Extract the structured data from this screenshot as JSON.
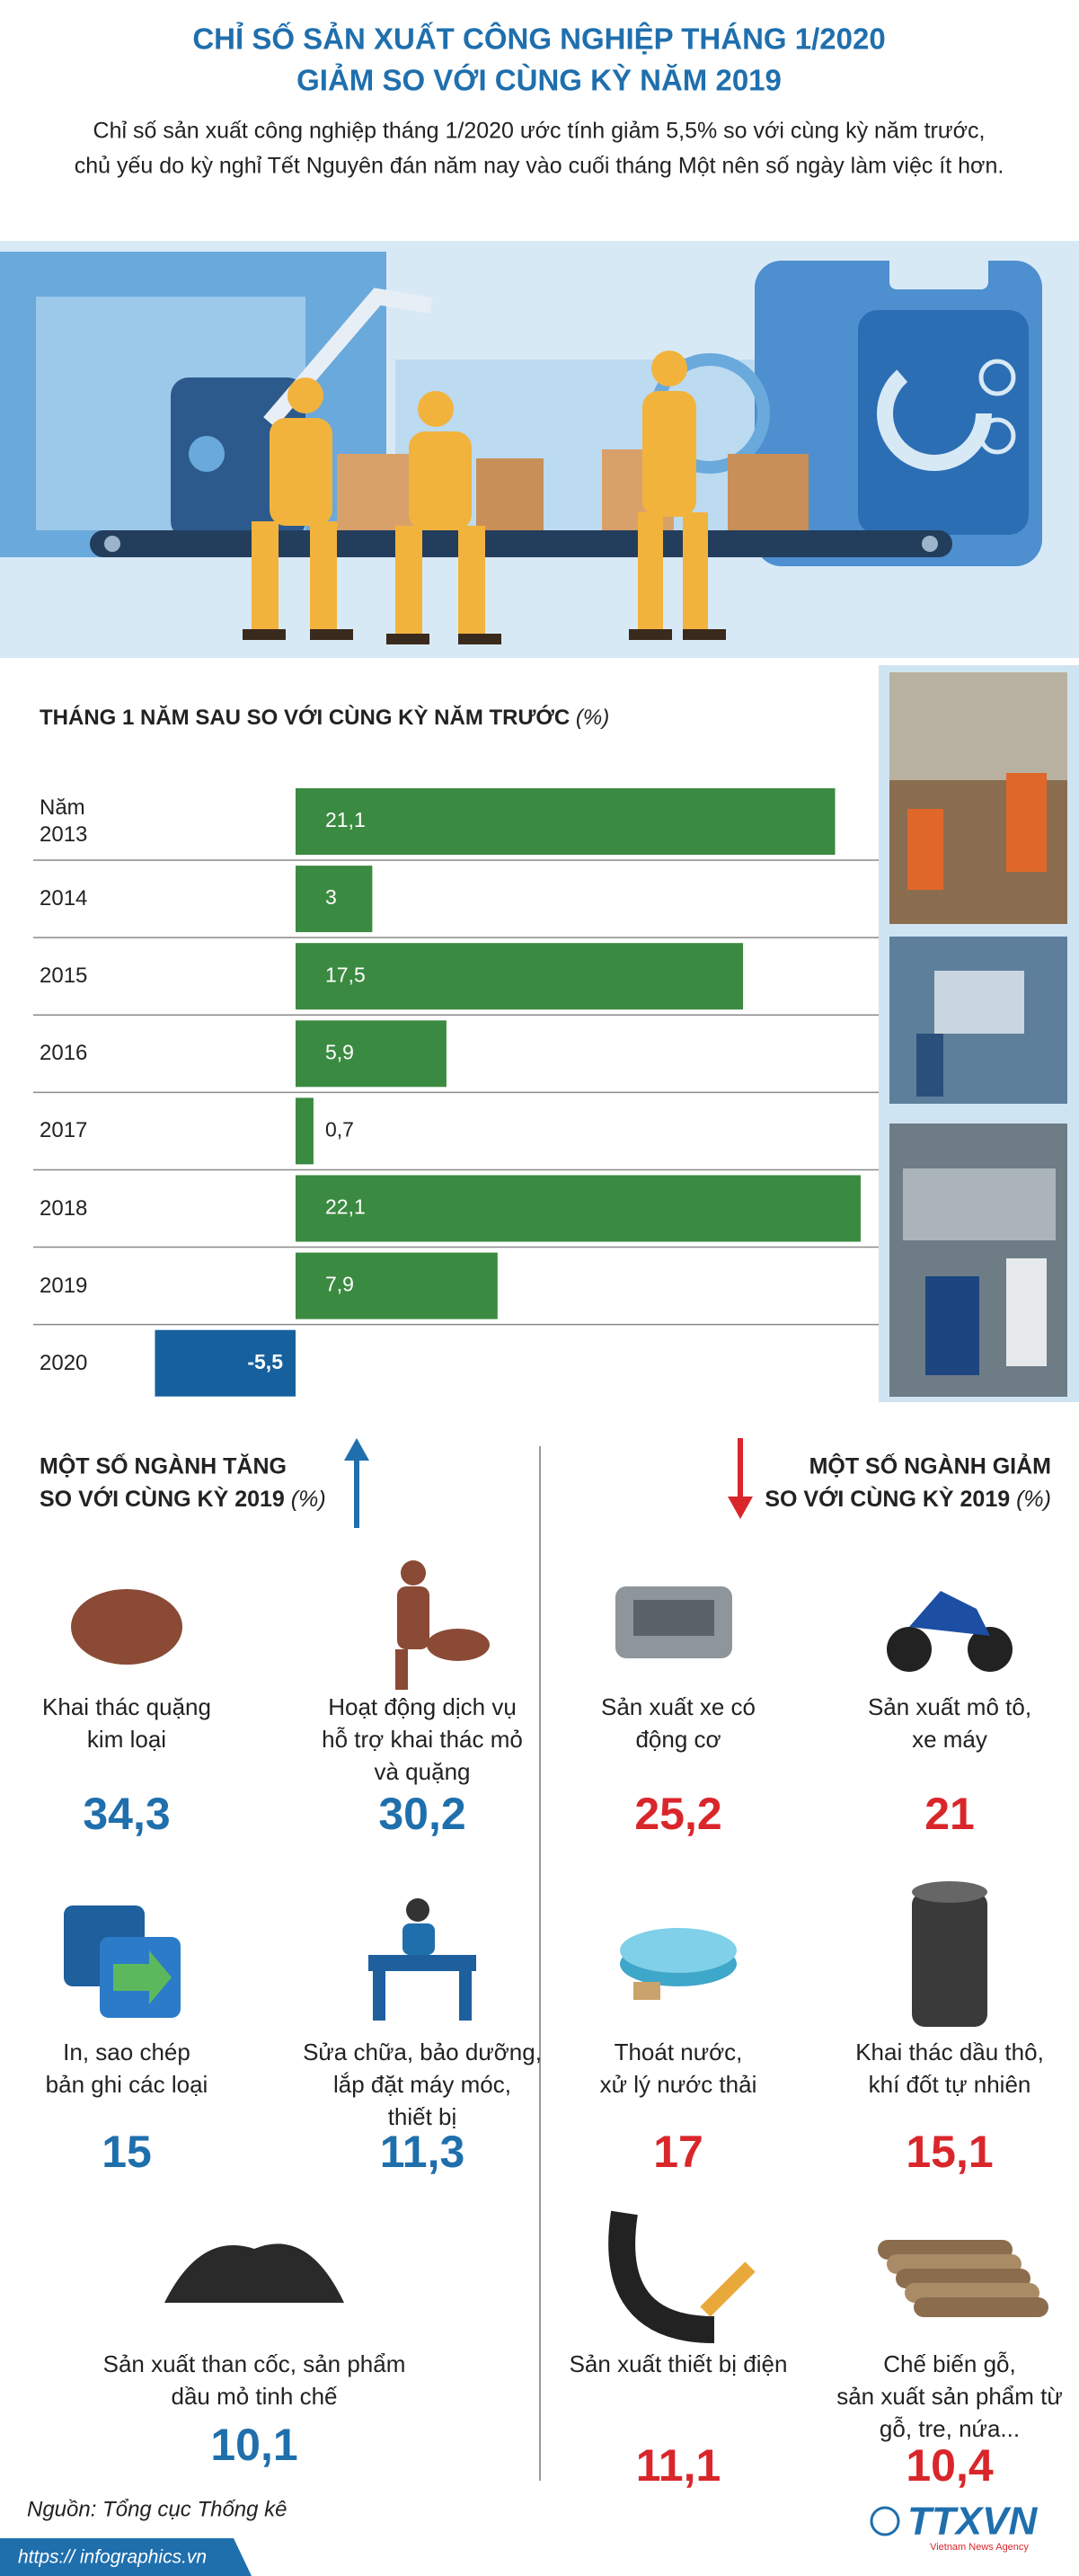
{
  "title": [
    "CHỈ SỐ SẢN XUẤT CÔNG NGHIỆP THÁNG 1/2020",
    "GIẢM SO VỚI CÙNG KỲ NĂM 2019"
  ],
  "subtitle": [
    "Chỉ số sản xuất công nghiệp tháng 1/2020 ước tính giảm 5,5% so với cùng kỳ năm trước,",
    "chủ yếu do kỳ nghỉ Tết Nguyên đán năm nay vào cuối tháng Một nên số ngày làm việc ít hơn."
  ],
  "chart_data": {
    "type": "bar",
    "title": "THÁNG 1 NĂM SAU SO VỚI CÙNG KỲ NĂM TRƯỚC",
    "unit": "(%)",
    "categories": [
      "Năm 2013",
      "2014",
      "2015",
      "2016",
      "2017",
      "2018",
      "2019",
      "2020"
    ],
    "values": [
      21.1,
      3,
      17.5,
      5.9,
      0.7,
      22.1,
      7.9,
      -5.5
    ],
    "value_labels": [
      "21,1",
      "3",
      "17,5",
      "5,9",
      "0,7",
      "22,1",
      "7,9",
      "-5,5"
    ],
    "color": "#3b8a41",
    "negative_color": "#17609e"
  },
  "increase": {
    "title": [
      "MỘT SỐ NGÀNH TĂNG",
      "SO VỚI CÙNG KỲ 2019"
    ],
    "unit": "(%)",
    "items": [
      {
        "name": [
          "Khai thác quặng",
          "kim loại"
        ],
        "value": "34,3"
      },
      {
        "name": [
          "Hoạt động dịch vụ",
          "hỗ trợ khai thác mỏ",
          "và quặng"
        ],
        "value": "30,2"
      },
      {
        "name": [
          "In, sao chép",
          "bản ghi các loại"
        ],
        "value": "15"
      },
      {
        "name": [
          "Sửa chữa, bảo dưỡng,",
          "lắp đặt máy móc,",
          "thiết bị"
        ],
        "value": "11,3"
      },
      {
        "name": [
          "Sản xuất than cốc, sản phẩm",
          "dầu mỏ tinh chế"
        ],
        "value": "10,1"
      }
    ]
  },
  "decrease": {
    "title": [
      "MỘT SỐ NGÀNH GIẢM",
      "SO VỚI CÙNG KỲ 2019"
    ],
    "unit": "(%)",
    "items": [
      {
        "name": [
          "Sản xuất xe có",
          "động cơ"
        ],
        "value": "25,2"
      },
      {
        "name": [
          "Sản xuất mô tô,",
          "xe máy"
        ],
        "value": "21"
      },
      {
        "name": [
          "Thoát nước,",
          "xử lý nước thải"
        ],
        "value": "17"
      },
      {
        "name": [
          "Khai thác dầu thô,",
          "khí đốt tự nhiên"
        ],
        "value": "15,1"
      },
      {
        "name": [
          "Sản xuất thiết bị điện"
        ],
        "value": "11,1"
      },
      {
        "name": [
          "Chế biến gỗ,",
          "sản xuất sản phẩm từ",
          "gỗ, tre, nứa..."
        ],
        "value": "10,4"
      }
    ]
  },
  "source": "Nguồn: Tổng cục Thống kê",
  "website": "https:// infographics.vn",
  "logo": "TTXVN",
  "logo_sub": "Vietnam News Agency"
}
